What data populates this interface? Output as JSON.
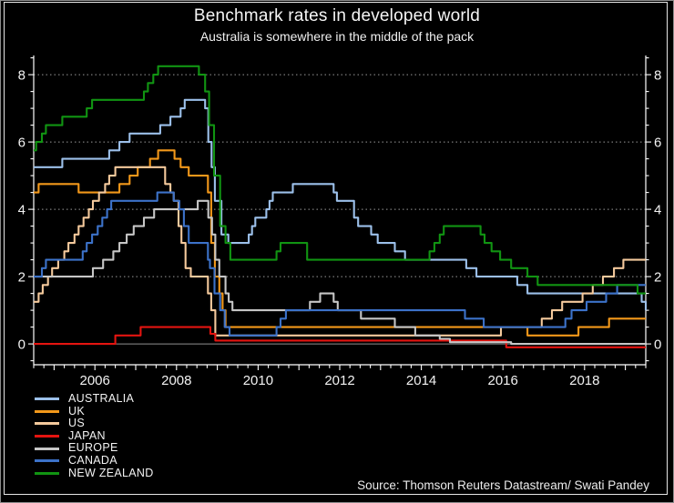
{
  "chart": {
    "title": "Benchmark rates in developed world",
    "subtitle": "Australia is somewhere in the middle of the pack",
    "source": "Source: Thomson Reuters Datastream/ Swati Pandey"
  },
  "colors": {
    "background": "#000000",
    "text": "#f2f2f2",
    "axis": "#ffffff",
    "grid_dotted": "#9a9a9a",
    "zero_line": "#8f8f8f",
    "border": "#e6e6e6"
  },
  "chart_data": {
    "type": "line",
    "step": true,
    "title": "Benchmark rates in developed world",
    "subtitle": "Australia is somewhere in the middle of the pack",
    "unit": "percent",
    "grid": "horizontal dotted at 2,4,6,8; solid at 0",
    "legend_position": "bottom-left",
    "x_axis": {
      "range": [
        2004.5,
        2019.5
      ],
      "tick_labels": [
        2006,
        2008,
        2010,
        2012,
        2014,
        2016,
        2018
      ],
      "minor_tick_step": 0.25,
      "year_tick_step": 1
    },
    "y_axis": {
      "range": [
        -0.62,
        8.57
      ],
      "tick_labels": [
        0,
        2,
        4,
        6,
        8
      ],
      "minor_tick_step": 0.5,
      "labels_on_both_sides": true
    },
    "series": [
      {
        "name": "AUSTRALIA",
        "color": "#9cc0ea",
        "points": [
          [
            2004.5,
            5.25
          ],
          [
            2005.2,
            5.5
          ],
          [
            2006.35,
            5.75
          ],
          [
            2006.6,
            6.0
          ],
          [
            2006.85,
            6.25
          ],
          [
            2007.6,
            6.5
          ],
          [
            2007.85,
            6.75
          ],
          [
            2008.1,
            7.0
          ],
          [
            2008.2,
            7.25
          ],
          [
            2008.7,
            7.0
          ],
          [
            2008.78,
            6.0
          ],
          [
            2008.86,
            5.25
          ],
          [
            2008.94,
            4.25
          ],
          [
            2009.1,
            3.25
          ],
          [
            2009.27,
            3.0
          ],
          [
            2009.77,
            3.25
          ],
          [
            2009.85,
            3.5
          ],
          [
            2009.93,
            3.75
          ],
          [
            2010.2,
            4.0
          ],
          [
            2010.28,
            4.25
          ],
          [
            2010.36,
            4.5
          ],
          [
            2010.85,
            4.75
          ],
          [
            2011.85,
            4.5
          ],
          [
            2011.93,
            4.25
          ],
          [
            2012.35,
            3.75
          ],
          [
            2012.45,
            3.5
          ],
          [
            2012.77,
            3.25
          ],
          [
            2012.93,
            3.0
          ],
          [
            2013.35,
            2.75
          ],
          [
            2013.6,
            2.5
          ],
          [
            2015.1,
            2.25
          ],
          [
            2015.35,
            2.0
          ],
          [
            2016.35,
            1.75
          ],
          [
            2016.6,
            1.5
          ],
          [
            2019.4,
            1.25
          ],
          [
            2019.5,
            1.0
          ]
        ]
      },
      {
        "name": "UK",
        "color": "#f2981a",
        "points": [
          [
            2004.5,
            4.5
          ],
          [
            2004.62,
            4.75
          ],
          [
            2005.6,
            4.5
          ],
          [
            2006.6,
            4.75
          ],
          [
            2006.85,
            5.0
          ],
          [
            2007.05,
            5.25
          ],
          [
            2007.35,
            5.5
          ],
          [
            2007.55,
            5.75
          ],
          [
            2007.95,
            5.5
          ],
          [
            2008.1,
            5.25
          ],
          [
            2008.3,
            5.0
          ],
          [
            2008.77,
            4.5
          ],
          [
            2008.85,
            3.0
          ],
          [
            2008.94,
            2.0
          ],
          [
            2009.05,
            1.5
          ],
          [
            2009.13,
            1.0
          ],
          [
            2009.2,
            0.5
          ],
          [
            2016.6,
            0.25
          ],
          [
            2017.85,
            0.5
          ],
          [
            2018.6,
            0.75
          ],
          [
            2019.5,
            0.75
          ]
        ]
      },
      {
        "name": "US",
        "color": "#f4c99c",
        "points": [
          [
            2004.5,
            1.25
          ],
          [
            2004.62,
            1.5
          ],
          [
            2004.72,
            1.75
          ],
          [
            2004.85,
            2.0
          ],
          [
            2004.95,
            2.25
          ],
          [
            2005.1,
            2.5
          ],
          [
            2005.25,
            2.75
          ],
          [
            2005.35,
            3.0
          ],
          [
            2005.5,
            3.25
          ],
          [
            2005.6,
            3.5
          ],
          [
            2005.72,
            3.75
          ],
          [
            2005.85,
            4.0
          ],
          [
            2005.95,
            4.25
          ],
          [
            2006.1,
            4.5
          ],
          [
            2006.25,
            4.75
          ],
          [
            2006.35,
            5.0
          ],
          [
            2006.5,
            5.25
          ],
          [
            2007.72,
            4.75
          ],
          [
            2007.85,
            4.5
          ],
          [
            2007.93,
            4.25
          ],
          [
            2008.05,
            3.5
          ],
          [
            2008.12,
            3.0
          ],
          [
            2008.22,
            2.25
          ],
          [
            2008.35,
            2.0
          ],
          [
            2008.77,
            1.5
          ],
          [
            2008.85,
            1.0
          ],
          [
            2008.95,
            0.25
          ],
          [
            2015.95,
            0.5
          ],
          [
            2016.95,
            0.75
          ],
          [
            2017.2,
            1.0
          ],
          [
            2017.45,
            1.25
          ],
          [
            2017.95,
            1.5
          ],
          [
            2018.2,
            1.75
          ],
          [
            2018.45,
            2.0
          ],
          [
            2018.72,
            2.25
          ],
          [
            2018.95,
            2.5
          ],
          [
            2019.5,
            2.5
          ]
        ]
      },
      {
        "name": "JAPAN",
        "color": "#e41410",
        "points": [
          [
            2004.5,
            0.0
          ],
          [
            2006.5,
            0.25
          ],
          [
            2007.12,
            0.5
          ],
          [
            2008.83,
            0.3
          ],
          [
            2008.95,
            0.1
          ],
          [
            2016.08,
            -0.1
          ],
          [
            2019.5,
            -0.1
          ]
        ]
      },
      {
        "name": "EUROPE",
        "color": "#c6c6c6",
        "points": [
          [
            2004.5,
            2.0
          ],
          [
            2005.95,
            2.25
          ],
          [
            2006.2,
            2.5
          ],
          [
            2006.45,
            2.75
          ],
          [
            2006.6,
            3.0
          ],
          [
            2006.78,
            3.25
          ],
          [
            2006.95,
            3.5
          ],
          [
            2007.2,
            3.75
          ],
          [
            2007.45,
            4.0
          ],
          [
            2008.52,
            4.25
          ],
          [
            2008.78,
            3.75
          ],
          [
            2008.87,
            3.25
          ],
          [
            2008.95,
            2.5
          ],
          [
            2009.05,
            2.0
          ],
          [
            2009.2,
            1.5
          ],
          [
            2009.28,
            1.25
          ],
          [
            2009.37,
            1.0
          ],
          [
            2011.27,
            1.25
          ],
          [
            2011.52,
            1.5
          ],
          [
            2011.85,
            1.25
          ],
          [
            2011.95,
            1.0
          ],
          [
            2012.52,
            0.75
          ],
          [
            2013.35,
            0.5
          ],
          [
            2013.85,
            0.25
          ],
          [
            2014.45,
            0.15
          ],
          [
            2014.7,
            0.05
          ],
          [
            2016.2,
            0.0
          ],
          [
            2019.5,
            0.0
          ]
        ]
      },
      {
        "name": "CANADA",
        "color": "#3c72c9",
        "points": [
          [
            2004.5,
            2.0
          ],
          [
            2004.7,
            2.25
          ],
          [
            2004.8,
            2.5
          ],
          [
            2005.7,
            2.75
          ],
          [
            2005.8,
            3.0
          ],
          [
            2005.93,
            3.25
          ],
          [
            2006.07,
            3.5
          ],
          [
            2006.18,
            3.75
          ],
          [
            2006.3,
            4.0
          ],
          [
            2006.4,
            4.25
          ],
          [
            2007.53,
            4.5
          ],
          [
            2007.93,
            4.25
          ],
          [
            2008.07,
            4.0
          ],
          [
            2008.18,
            3.5
          ],
          [
            2008.3,
            3.0
          ],
          [
            2008.77,
            2.5
          ],
          [
            2008.82,
            2.25
          ],
          [
            2008.93,
            1.5
          ],
          [
            2009.07,
            1.0
          ],
          [
            2009.18,
            0.5
          ],
          [
            2009.3,
            0.25
          ],
          [
            2010.45,
            0.5
          ],
          [
            2010.55,
            0.75
          ],
          [
            2010.68,
            1.0
          ],
          [
            2015.07,
            0.75
          ],
          [
            2015.53,
            0.5
          ],
          [
            2017.53,
            0.75
          ],
          [
            2017.68,
            1.0
          ],
          [
            2018.05,
            1.25
          ],
          [
            2018.53,
            1.5
          ],
          [
            2018.8,
            1.75
          ],
          [
            2019.5,
            1.75
          ]
        ]
      },
      {
        "name": "NEW ZEALAND",
        "color": "#119412",
        "points": [
          [
            2004.5,
            5.75
          ],
          [
            2004.56,
            6.0
          ],
          [
            2004.7,
            6.25
          ],
          [
            2004.8,
            6.5
          ],
          [
            2005.2,
            6.75
          ],
          [
            2005.8,
            7.0
          ],
          [
            2005.93,
            7.25
          ],
          [
            2007.2,
            7.5
          ],
          [
            2007.3,
            7.75
          ],
          [
            2007.43,
            8.0
          ],
          [
            2007.55,
            8.25
          ],
          [
            2008.55,
            8.0
          ],
          [
            2008.7,
            7.5
          ],
          [
            2008.8,
            6.5
          ],
          [
            2008.92,
            5.0
          ],
          [
            2009.07,
            3.5
          ],
          [
            2009.2,
            3.0
          ],
          [
            2009.32,
            2.5
          ],
          [
            2010.45,
            2.75
          ],
          [
            2010.55,
            3.0
          ],
          [
            2011.2,
            2.5
          ],
          [
            2014.2,
            2.75
          ],
          [
            2014.32,
            3.0
          ],
          [
            2014.45,
            3.25
          ],
          [
            2014.55,
            3.5
          ],
          [
            2015.45,
            3.25
          ],
          [
            2015.55,
            3.0
          ],
          [
            2015.72,
            2.75
          ],
          [
            2015.93,
            2.5
          ],
          [
            2016.2,
            2.25
          ],
          [
            2016.6,
            2.0
          ],
          [
            2016.85,
            1.75
          ],
          [
            2019.3,
            1.5
          ],
          [
            2019.5,
            1.5
          ]
        ]
      }
    ]
  }
}
